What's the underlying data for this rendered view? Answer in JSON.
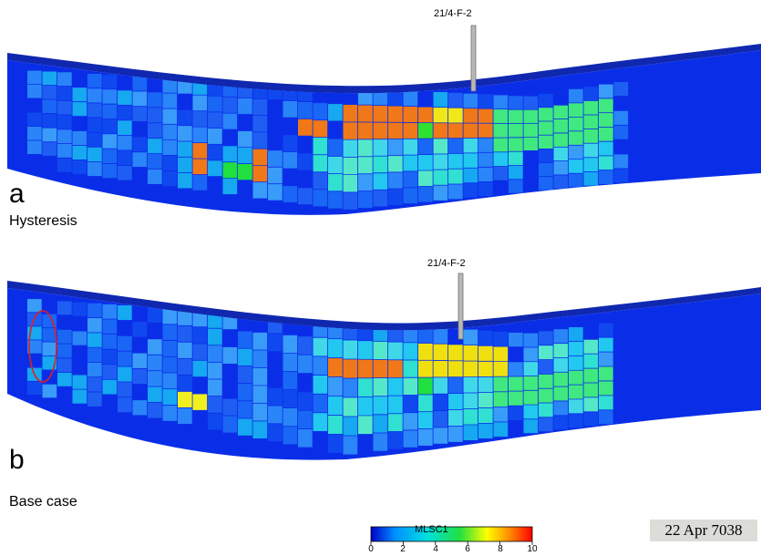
{
  "panels": [
    {
      "letter": "a",
      "caption": "Hysteresis",
      "well_label": "21/4-F-2"
    },
    {
      "letter": "b",
      "caption": "Base case",
      "well_label": "21/4-F-2"
    }
  ],
  "colorbar": {
    "title": "MLSC1",
    "min": 0,
    "max": 10,
    "ticks": [
      "0",
      "2",
      "4",
      "6",
      "8",
      "10"
    ],
    "colors": [
      "#0000c8",
      "#0090ff",
      "#00e0e0",
      "#20e040",
      "#ffff00",
      "#ff8000",
      "#ff0000"
    ]
  },
  "date_stamp": "22 Apr 7038",
  "colors": {
    "background_blue": "#0a2ee8",
    "top_surface": "#1028b0",
    "well_pipe": "#b8b8b8",
    "highlight_ellipse": "#e02020"
  }
}
